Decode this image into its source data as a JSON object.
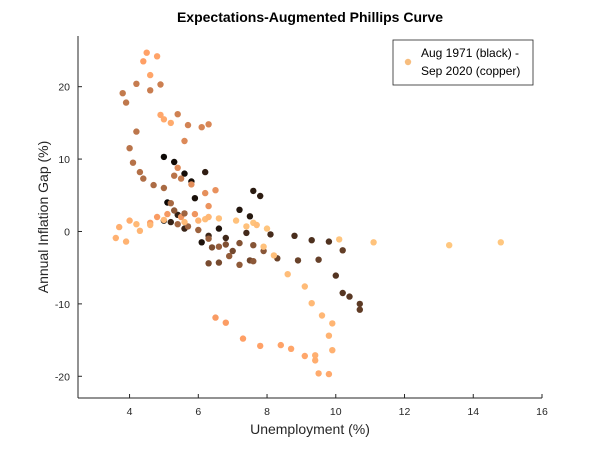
{
  "chart_data": {
    "type": "scatter",
    "title": "Expectations-Augmented Phillips Curve",
    "xlabel": "Unemployment (%)",
    "ylabel": "Annual Inflation Gap (%)",
    "xlim": [
      2.5,
      16
    ],
    "ylim": [
      -23,
      27
    ],
    "xticks": [
      4,
      6,
      8,
      10,
      12,
      14,
      16
    ],
    "yticks": [
      -20,
      -10,
      0,
      10,
      20
    ],
    "grid": false,
    "legend": {
      "position": "top-right",
      "line1": "Aug 1971 (black) -",
      "line2": "Sep 2020 (copper)",
      "marker_color": "#f7bd7e"
    },
    "colormap": "copper",
    "series": [
      {
        "points": [
          [
            5.0,
            1.5,
            0.02
          ],
          [
            5.1,
            4.0,
            0.03
          ],
          [
            5.0,
            10.3,
            0.04
          ],
          [
            5.3,
            9.6,
            0.05
          ],
          [
            5.6,
            8.0,
            0.06
          ],
          [
            5.8,
            6.9,
            0.07
          ],
          [
            5.9,
            4.6,
            0.08
          ],
          [
            6.1,
            -1.5,
            0.09
          ],
          [
            6.6,
            0.4,
            0.1
          ],
          [
            7.2,
            3.0,
            0.11
          ],
          [
            7.5,
            2.1,
            0.12
          ],
          [
            7.6,
            5.6,
            0.13
          ],
          [
            7.8,
            4.9,
            0.14
          ],
          [
            6.2,
            8.2,
            0.15
          ],
          [
            5.4,
            2.3,
            0.16
          ],
          [
            5.2,
            1.3,
            0.17
          ],
          [
            5.6,
            0.4,
            0.18
          ],
          [
            6.3,
            -0.6,
            0.19
          ],
          [
            6.8,
            -0.9,
            0.2
          ],
          [
            7.4,
            -0.2,
            0.21
          ],
          [
            8.1,
            -0.4,
            0.22
          ],
          [
            8.8,
            -0.6,
            0.23
          ],
          [
            9.3,
            -1.2,
            0.24
          ],
          [
            9.8,
            -1.4,
            0.25
          ],
          [
            10.0,
            -6.1,
            0.26
          ],
          [
            10.2,
            -8.5,
            0.27
          ],
          [
            10.4,
            -9.0,
            0.28
          ],
          [
            10.7,
            -10.0,
            0.29
          ],
          [
            10.7,
            -10.8,
            0.3
          ],
          [
            10.2,
            -2.6,
            0.31
          ],
          [
            9.5,
            -3.9,
            0.32
          ],
          [
            8.9,
            -4.0,
            0.33
          ],
          [
            8.3,
            -3.7,
            0.34
          ],
          [
            7.5,
            -4.0,
            0.35
          ],
          [
            7.0,
            -2.7,
            0.36
          ],
          [
            6.6,
            -4.3,
            0.37
          ],
          [
            6.3,
            -4.4,
            0.38
          ],
          [
            6.4,
            -2.2,
            0.39
          ],
          [
            6.8,
            -1.8,
            0.4
          ],
          [
            7.2,
            -1.6,
            0.41
          ],
          [
            7.6,
            -1.9,
            0.42
          ],
          [
            7.9,
            -2.7,
            0.43
          ],
          [
            7.6,
            -4.1,
            0.44
          ],
          [
            7.2,
            -4.6,
            0.45
          ],
          [
            6.9,
            -3.4,
            0.46
          ],
          [
            6.6,
            -2.1,
            0.47
          ],
          [
            6.3,
            -1.0,
            0.48
          ],
          [
            6.0,
            0.2,
            0.49
          ],
          [
            5.7,
            0.7,
            0.5
          ],
          [
            5.4,
            1.0,
            0.51
          ],
          [
            5.2,
            3.9,
            0.52
          ],
          [
            5.0,
            6.0,
            0.53
          ],
          [
            4.7,
            6.4,
            0.54
          ],
          [
            4.4,
            7.3,
            0.55
          ],
          [
            4.3,
            8.2,
            0.56
          ],
          [
            4.1,
            9.5,
            0.57
          ],
          [
            4.0,
            11.5,
            0.58
          ],
          [
            4.2,
            13.8,
            0.59
          ],
          [
            3.9,
            17.8,
            0.6
          ],
          [
            3.8,
            19.1,
            0.61
          ],
          [
            4.2,
            20.4,
            0.62
          ],
          [
            4.6,
            19.5,
            0.63
          ],
          [
            4.9,
            20.3,
            0.64
          ],
          [
            5.4,
            16.2,
            0.65
          ],
          [
            5.7,
            14.7,
            0.66
          ],
          [
            6.1,
            14.4,
            0.67
          ],
          [
            6.3,
            14.8,
            0.68
          ],
          [
            5.6,
            12.5,
            0.69
          ],
          [
            5.4,
            8.8,
            0.7
          ],
          [
            5.8,
            6.5,
            0.71
          ],
          [
            6.2,
            5.3,
            0.72
          ],
          [
            6.5,
            5.7,
            0.73
          ],
          [
            6.3,
            3.5,
            0.74
          ],
          [
            5.9,
            2.4,
            0.75
          ],
          [
            5.5,
            2.0,
            0.76
          ],
          [
            5.1,
            2.4,
            0.77
          ],
          [
            4.8,
            2.0,
            0.78
          ],
          [
            4.6,
            1.2,
            0.79
          ],
          [
            4.4,
            23.5,
            0.8
          ],
          [
            4.5,
            24.7,
            0.81
          ],
          [
            4.8,
            24.2,
            0.82
          ],
          [
            4.6,
            21.6,
            0.83
          ],
          [
            4.9,
            16.1,
            0.84
          ],
          [
            5.0,
            15.5,
            0.85
          ],
          [
            5.2,
            15.0,
            0.86
          ],
          [
            4.0,
            1.5,
            0.87
          ],
          [
            3.7,
            0.6,
            0.88
          ],
          [
            3.6,
            -0.9,
            0.89
          ],
          [
            3.9,
            -1.4,
            0.9
          ],
          [
            4.3,
            0.1,
            0.91
          ],
          [
            4.6,
            0.9,
            0.92
          ],
          [
            5.0,
            1.6,
            0.93
          ],
          [
            5.6,
            1.3,
            0.94
          ],
          [
            6.2,
            1.7,
            0.95
          ],
          [
            6.6,
            1.8,
            0.96
          ],
          [
            7.1,
            1.5,
            0.97
          ],
          [
            7.6,
            1.2,
            0.98
          ],
          [
            8.0,
            0.4,
            0.99
          ],
          [
            7.9,
            -2.1,
            0.97
          ],
          [
            8.2,
            -3.3,
            0.96
          ],
          [
            8.6,
            -5.9,
            0.95
          ],
          [
            9.1,
            -7.6,
            0.94
          ],
          [
            9.3,
            -9.9,
            0.93
          ],
          [
            9.6,
            -11.6,
            0.92
          ],
          [
            9.9,
            -12.7,
            0.91
          ],
          [
            9.8,
            -14.4,
            0.9
          ],
          [
            9.9,
            -16.4,
            0.89
          ],
          [
            9.4,
            -17.1,
            0.88
          ],
          [
            9.4,
            -17.8,
            0.87
          ],
          [
            9.5,
            -19.6,
            0.86
          ],
          [
            9.8,
            -19.7,
            0.85
          ],
          [
            9.1,
            -17.2,
            0.84
          ],
          [
            8.7,
            -16.2,
            0.83
          ],
          [
            8.4,
            -15.7,
            0.82
          ],
          [
            7.8,
            -15.8,
            0.81
          ],
          [
            7.3,
            -14.8,
            0.8
          ],
          [
            6.8,
            -12.6,
            0.79
          ],
          [
            6.5,
            -11.9,
            0.78
          ],
          [
            11.1,
            -1.5,
            0.98
          ],
          [
            10.1,
            -1.1,
            0.99
          ],
          [
            13.3,
            -1.9,
            1.0
          ],
          [
            14.8,
            -1.5,
            1.0
          ],
          [
            5.6,
            2.5,
            0.5
          ],
          [
            5.3,
            2.9,
            0.45
          ],
          [
            5.5,
            7.3,
            0.62
          ],
          [
            5.3,
            7.7,
            0.58
          ],
          [
            6.0,
            1.5,
            0.9
          ],
          [
            6.3,
            2.0,
            0.92
          ],
          [
            7.7,
            0.9,
            0.95
          ],
          [
            7.4,
            0.7,
            0.97
          ],
          [
            4.2,
            1.0,
            0.93
          ]
        ]
      }
    ]
  }
}
